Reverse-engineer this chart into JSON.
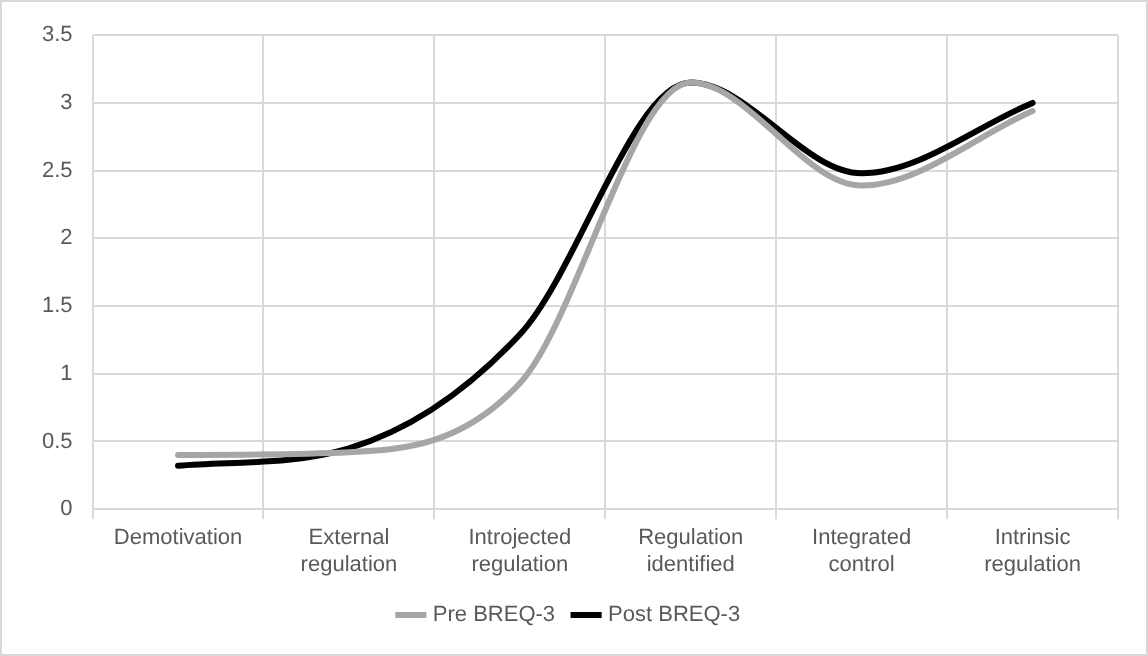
{
  "chart_data": {
    "type": "line",
    "categories": [
      "Demotivation",
      "External regulation",
      "Introjected regulation",
      "Regulation identified",
      "Integrated control",
      "Intrinsic regulation"
    ],
    "series": [
      {
        "name": "Pre BREQ-3",
        "color": "#a6a6a6",
        "values": [
          0.4,
          0.42,
          0.93,
          3.15,
          2.39,
          2.94
        ]
      },
      {
        "name": "Post BREQ-3",
        "color": "#000000",
        "values": [
          0.32,
          0.45,
          1.29,
          3.15,
          2.48,
          3.0
        ]
      }
    ],
    "ylim": [
      0,
      3.5
    ],
    "yticks": [
      0,
      0.5,
      1,
      1.5,
      2,
      2.5,
      3,
      3.5
    ],
    "grid": true,
    "legend": "bottom",
    "marker": "none",
    "line_style": "solid"
  }
}
